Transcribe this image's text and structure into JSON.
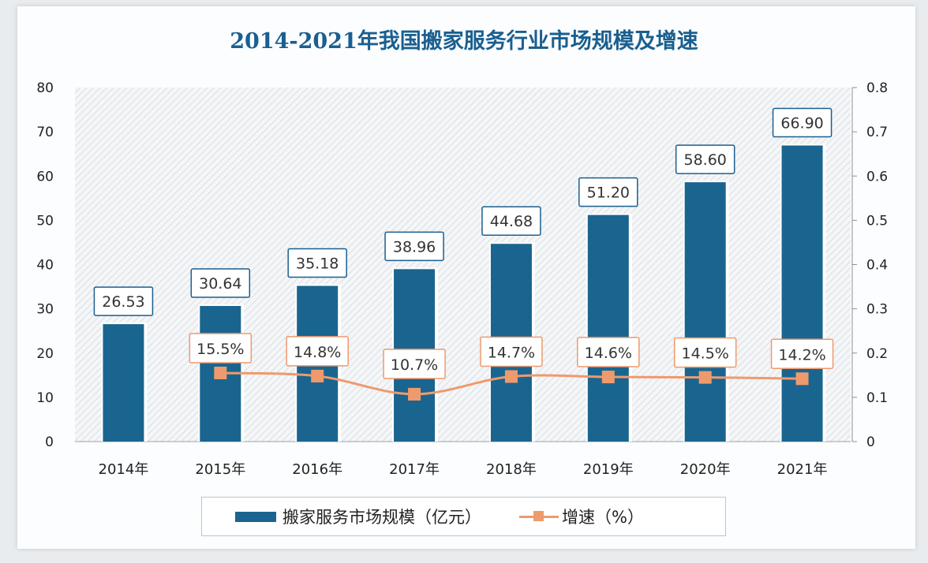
{
  "chart_data": {
    "type": "bar+line",
    "title": "2014-2021年我国搬家服务行业市场规模及增速",
    "categories": [
      "2014年",
      "2015年",
      "2016年",
      "2017年",
      "2018年",
      "2019年",
      "2020年",
      "2021年"
    ],
    "series": [
      {
        "name": "搬家服务市场规模（亿元）",
        "type": "bar",
        "axis": "left",
        "color": "#1a6590",
        "values": [
          26.53,
          30.64,
          35.18,
          38.96,
          44.68,
          51.2,
          58.6,
          66.9
        ],
        "labels": [
          "26.53",
          "30.64",
          "35.18",
          "38.96",
          "44.68",
          "51.20",
          "58.60",
          "66.90"
        ]
      },
      {
        "name": "增速（%）",
        "type": "line",
        "axis": "right",
        "color": "#ef9a6c",
        "values": [
          null,
          0.155,
          0.148,
          0.107,
          0.147,
          0.146,
          0.145,
          0.142
        ],
        "labels": [
          null,
          "15.5%",
          "14.8%",
          "10.7%",
          "14.7%",
          "14.6%",
          "14.5%",
          "14.2%"
        ]
      }
    ],
    "ylim_left": [
      0,
      80
    ],
    "yticks_left": [
      "0",
      "10",
      "20",
      "30",
      "40",
      "50",
      "60",
      "70",
      "80"
    ],
    "ylim_right": [
      0,
      0.8
    ],
    "yticks_right": [
      "0",
      "0.1",
      "0.2",
      "0.3",
      "0.4",
      "0.5",
      "0.6",
      "0.7",
      "0.8"
    ],
    "legend_position": "bottom",
    "background": "hatched"
  }
}
